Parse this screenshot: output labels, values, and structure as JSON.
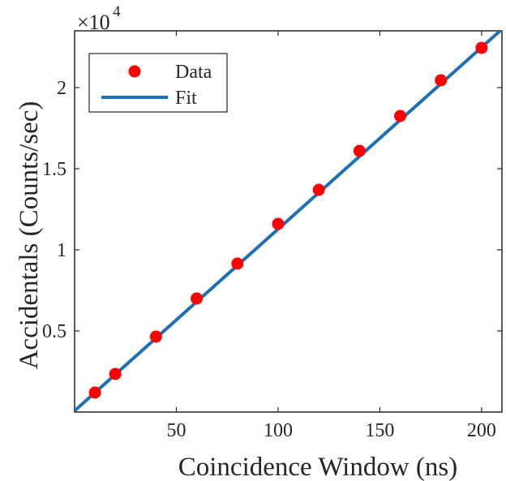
{
  "chart_data": {
    "type": "scatter",
    "xlabel": "Coincidence Window (ns)",
    "ylabel": "Accidentals (Counts/sec)",
    "y_multiplier": "×10",
    "y_exponent": "4",
    "xlim": [
      0,
      210
    ],
    "ylim": [
      0,
      23500
    ],
    "xticks": [
      50,
      100,
      150,
      200
    ],
    "yticks": [
      5000,
      10000,
      15000,
      20000
    ],
    "ytick_labels": [
      "0.5",
      "1",
      "1.5",
      "2"
    ],
    "grid": false,
    "legend_position": "top-left",
    "series": [
      {
        "name": "Data",
        "kind": "markers",
        "color": "#ff0000",
        "x": [
          10,
          20,
          40,
          60,
          80,
          100,
          120,
          140,
          160,
          180,
          200
        ],
        "y": [
          1200,
          2350,
          4650,
          7000,
          9150,
          11600,
          13700,
          16100,
          18250,
          20450,
          22450
        ]
      },
      {
        "name": "Fit",
        "kind": "line",
        "color": "#1f6fb4",
        "x": [
          0,
          210
        ],
        "y": [
          80,
          23600
        ]
      }
    ]
  }
}
